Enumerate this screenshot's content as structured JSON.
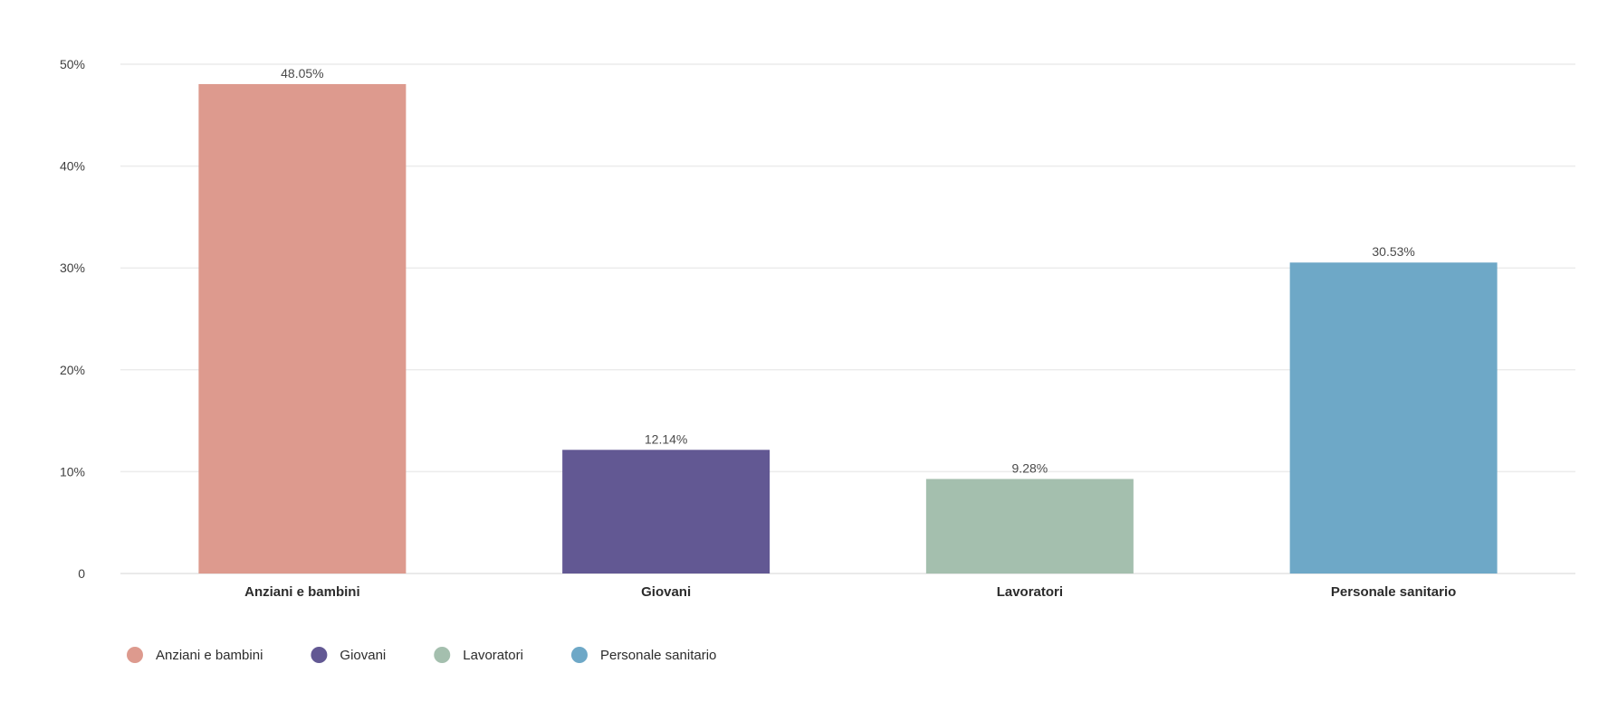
{
  "chart_data": {
    "type": "bar",
    "title": "",
    "xlabel": "",
    "ylabel": "",
    "categories": [
      "Anziani e bambini",
      "Giovani",
      "Lavoratori",
      "Personale sanitario"
    ],
    "values": [
      48.05,
      12.14,
      9.28,
      30.53
    ],
    "data_labels": [
      "48.05%",
      "12.14%",
      "9.28%",
      "30.53%"
    ],
    "colors": [
      "#dd9a8e",
      "#625893",
      "#a4bfae",
      "#6ea8c7"
    ],
    "ylim": [
      0,
      50
    ],
    "yticks": [
      0,
      10,
      20,
      30,
      40,
      50
    ],
    "ytick_labels": [
      "0",
      "10%",
      "20%",
      "30%",
      "40%",
      "50%"
    ],
    "grid": true,
    "legend": {
      "position": "bottom-left",
      "entries": [
        "Anziani e bambini",
        "Giovani",
        "Lavoratori",
        "Personale sanitario"
      ]
    }
  }
}
